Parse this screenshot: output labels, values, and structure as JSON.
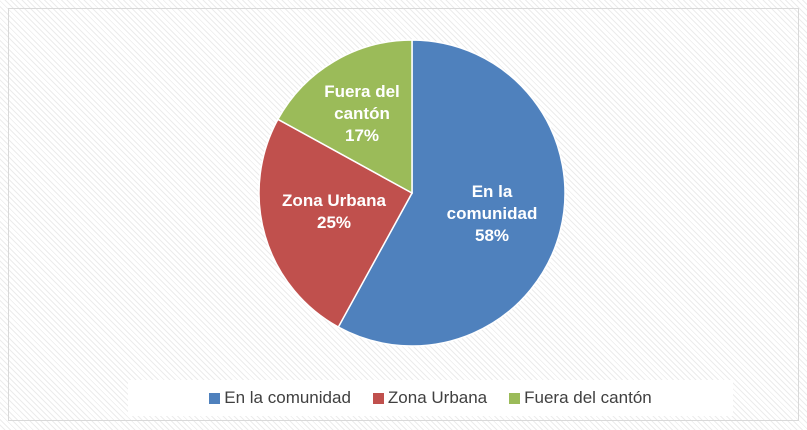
{
  "chart_data": {
    "type": "pie",
    "categories": [
      "En la comunidad",
      "Zona Urbana",
      "Fuera del cantón"
    ],
    "values": [
      58,
      25,
      17
    ],
    "value_labels": [
      "58%",
      "25%",
      "17%"
    ],
    "colors": [
      "#4f81bd",
      "#c0504d",
      "#9bbb59"
    ],
    "legend": "bottom"
  }
}
